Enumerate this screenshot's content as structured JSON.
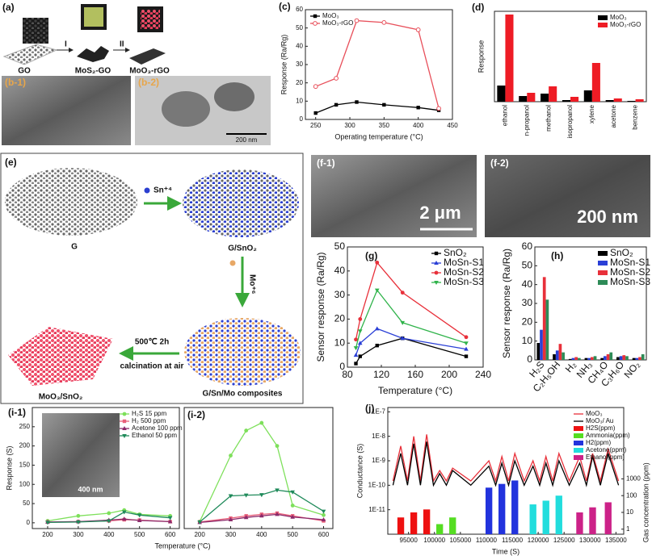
{
  "chart_data": [
    {
      "type": "line",
      "label": "(c)",
      "xlabel": "Operating temperature (°C)",
      "ylabel": "Response (Ra/Rg)",
      "x": [
        250,
        280,
        310,
        350,
        400,
        430
      ],
      "xlim": [
        235,
        450
      ],
      "xticks": [
        250,
        300,
        350,
        400,
        450
      ],
      "ylim": [
        0,
        60
      ],
      "yticks": [
        0,
        10,
        20,
        30,
        40,
        50,
        60
      ],
      "legend": "upper left",
      "series": [
        {
          "name": "MoO₃",
          "color": "#000000",
          "marker": "square",
          "values": [
            3.5,
            8,
            9.5,
            8,
            6.5,
            5
          ]
        },
        {
          "name": "MoO₃-rGO",
          "color": "#e8505b",
          "marker": "open-circle",
          "values": [
            18,
            22.5,
            54,
            53,
            49,
            6
          ]
        }
      ]
    },
    {
      "type": "bar",
      "label": "(d)",
      "ylabel": "Response",
      "categories": [
        "ethanol",
        "n-propanol",
        "methanol",
        "isopropanol",
        "xylene",
        "acetone",
        "benzene"
      ],
      "ylim": [
        0,
        56
      ],
      "legend": "upper right",
      "series": [
        {
          "name": "MoO₃",
          "color": "#000000",
          "values": [
            10,
            3.5,
            5,
            1,
            7,
            1,
            0.5
          ]
        },
        {
          "name": "MoO₃-rGO",
          "color": "#ee1c25",
          "values": [
            54,
            5.5,
            9.5,
            3,
            24,
            2,
            1.5
          ]
        }
      ]
    },
    {
      "type": "line",
      "label": "(g)",
      "xlabel": "Temperature (°C)",
      "ylabel": "Sensor response (Ra/Rg)",
      "x": [
        90,
        95,
        115,
        145,
        220
      ],
      "xlim": [
        80,
        240
      ],
      "xticks": [
        80,
        120,
        160,
        200,
        240
      ],
      "ylim": [
        0,
        50
      ],
      "yticks": [
        0,
        10,
        20,
        30,
        40,
        50
      ],
      "legend": "upper right",
      "series": [
        {
          "name": "SnO₂",
          "color": "#000000",
          "marker": "square",
          "values": [
            1.5,
            4.5,
            9,
            12,
            4.5
          ]
        },
        {
          "name": "MoSn-S1",
          "color": "#2a3fd6",
          "marker": "triangle",
          "values": [
            5,
            10,
            16,
            12,
            7.5
          ]
        },
        {
          "name": "MoSn-S2",
          "color": "#e8303a",
          "marker": "circle",
          "values": [
            11.5,
            20,
            43.5,
            31,
            12.5
          ]
        },
        {
          "name": "MoSn-S3",
          "color": "#2fb34a",
          "marker": "triangle-down",
          "values": [
            8,
            15,
            32,
            18.5,
            10
          ]
        }
      ]
    },
    {
      "type": "bar",
      "label": "(h)",
      "ylabel": "Sensor response (Ra/Rg)",
      "categories": [
        "H₂S",
        "C₂H₅OH",
        "H₂",
        "NH₃",
        "CH₄O",
        "C₃H₆O",
        "NO₂"
      ],
      "ylim": [
        0,
        60
      ],
      "yticks": [
        0,
        10,
        20,
        30,
        40,
        50,
        60
      ],
      "legend": "upper right",
      "series": [
        {
          "name": "SnO₂",
          "color": "#000000",
          "values": [
            9,
            3,
            0.5,
            1,
            1,
            1.5,
            1
          ]
        },
        {
          "name": "MoSn-S1",
          "color": "#2a3fd6",
          "values": [
            16,
            5,
            1,
            1,
            2,
            2,
            1
          ]
        },
        {
          "name": "MoSn-S2",
          "color": "#e8303a",
          "values": [
            44,
            8.5,
            1.5,
            1.5,
            3,
            2.5,
            1.5
          ]
        },
        {
          "name": "MoSn-S3",
          "color": "#2e8b57",
          "values": [
            32,
            4,
            1,
            2,
            4,
            2,
            3
          ]
        }
      ]
    },
    {
      "type": "line",
      "label": "(i-1)",
      "xlabel": "Temperature (°C)",
      "ylabel": "Response (S)",
      "x": [
        200,
        300,
        400,
        450,
        500,
        600
      ],
      "xlim": [
        150,
        630
      ],
      "xticks": [
        200,
        300,
        400,
        500,
        600
      ],
      "ylim": [
        -15,
        300
      ],
      "yticks": [
        0,
        50,
        100,
        150,
        200,
        250
      ],
      "legend": "upper right",
      "series": [
        {
          "name": "H₂S 15 ppm",
          "color": "#7ee05b",
          "marker": "circle",
          "values": [
            5,
            18,
            25,
            33,
            22,
            18
          ]
        },
        {
          "name": "H₂ 500 ppm",
          "color": "#e8607a",
          "marker": "square",
          "values": [
            2,
            3,
            5,
            8,
            7,
            3
          ]
        },
        {
          "name": "Acetone 100 ppm",
          "color": "#8b2a6a",
          "marker": "triangle",
          "values": [
            2,
            3,
            7,
            10,
            6,
            3
          ]
        },
        {
          "name": "Ethanol 50 ppm",
          "color": "#1f8a5a",
          "marker": "triangle-down",
          "values": [
            1,
            2,
            5,
            28,
            20,
            13
          ]
        }
      ]
    },
    {
      "type": "line",
      "label": "(i-2)",
      "x": [
        200,
        300,
        350,
        400,
        450,
        500,
        600
      ],
      "xlim": [
        150,
        630
      ],
      "xticks": [
        200,
        300,
        400,
        500,
        600
      ],
      "ylim": [
        -15,
        300
      ],
      "series": [
        {
          "color": "#7ee05b",
          "marker": "circle",
          "values": [
            3,
            175,
            240,
            260,
            200,
            45,
            20
          ]
        },
        {
          "color": "#e8607a",
          "marker": "square",
          "values": [
            2,
            12,
            18,
            22,
            25,
            18,
            5
          ]
        },
        {
          "color": "#8b2a6a",
          "marker": "triangle",
          "values": [
            1,
            8,
            14,
            18,
            22,
            15,
            8
          ]
        },
        {
          "color": "#1f8a5a",
          "marker": "triangle-down",
          "values": [
            2,
            70,
            72,
            73,
            85,
            80,
            30
          ]
        }
      ]
    },
    {
      "type": "line",
      "label": "(j)",
      "xlabel": "Time (S)",
      "ylabel": "Conductance (S)",
      "y2label": "Gas concentration (ppm)",
      "xlim": [
        91000,
        136500
      ],
      "xticks": [
        95000,
        100000,
        105000,
        110000,
        115000,
        120000,
        125000,
        130000,
        135000
      ],
      "ylog": true,
      "ylim": [
        1e-12,
        1.5e-07
      ],
      "yticks": [
        {
          "value": 1e-07,
          "label": "1E-7"
        },
        {
          "value": 1e-08,
          "label": "1E-8"
        },
        {
          "value": 1e-09,
          "label": "1E-9"
        },
        {
          "value": 1e-10,
          "label": "1E-10"
        },
        {
          "value": 1e-11,
          "label": "1E-11"
        }
      ],
      "y2log": true,
      "y2lim": [
        0.5,
        3000
      ],
      "y2ticks": [
        1,
        10,
        100,
        1000
      ],
      "legend": "upper right",
      "series": [
        {
          "name": "MoO₃",
          "color": "#e8303a",
          "x": [
            92000,
            93500,
            94800,
            96000,
            97300,
            98500,
            99800,
            101000,
            102300,
            103500,
            107000,
            110500,
            111800,
            113000,
            114300,
            115500,
            117300,
            119000,
            120300,
            121500,
            122800,
            124000,
            126000,
            128000,
            129300,
            130500,
            132000,
            133500,
            135500
          ],
          "values": [
            1.5e-10,
            4e-09,
            1.5e-10,
            1e-08,
            1.5e-10,
            1.2e-08,
            1.5e-10,
            4e-10,
            1.5e-10,
            5e-10,
            1.5e-10,
            1e-09,
            1.5e-10,
            1.5e-09,
            1.5e-10,
            2e-09,
            1.5e-10,
            1e-09,
            1.5e-10,
            1.5e-09,
            1.5e-10,
            2e-09,
            1.5e-10,
            1.5e-09,
            1.5e-10,
            2e-09,
            1.5e-10,
            3e-09,
            1.5e-10
          ]
        },
        {
          "name": "MoO₃/ Au",
          "color": "#000000",
          "x": [
            92000,
            93500,
            94800,
            96000,
            97300,
            98500,
            99800,
            101000,
            102300,
            103500,
            107000,
            110500,
            111800,
            113000,
            114300,
            115500,
            117300,
            119000,
            120300,
            121500,
            122800,
            124000,
            126000,
            128000,
            129300,
            130500,
            132000,
            133500,
            135500
          ],
          "values": [
            1e-10,
            2e-09,
            1e-10,
            5e-09,
            1e-10,
            6e-09,
            1e-10,
            3e-10,
            1e-10,
            4e-10,
            1e-10,
            6e-10,
            1e-10,
            8e-10,
            1e-10,
            1e-09,
            1e-10,
            6e-10,
            1e-10,
            8e-10,
            1e-10,
            1e-09,
            1e-10,
            8e-10,
            1e-10,
            1.5e-09,
            1e-10,
            2e-09,
            1e-10
          ]
        },
        {
          "name": "H2S(ppm)",
          "type": "bar",
          "axis": "y2",
          "color": "#ee1111",
          "x": [
            93500,
            96000,
            98500
          ],
          "values": [
            5,
            10,
            15
          ]
        },
        {
          "name": "Ammonia(ppm)",
          "type": "bar",
          "axis": "y2",
          "color": "#55dd22",
          "x": [
            101000,
            103500
          ],
          "values": [
            2,
            5
          ]
        },
        {
          "name": "H2(ppm)",
          "type": "bar",
          "axis": "y2",
          "color": "#2233dd",
          "x": [
            110500,
            113000,
            115500
          ],
          "values": [
            300,
            500,
            800
          ]
        },
        {
          "name": "Acetone(ppm)",
          "type": "bar",
          "axis": "y2",
          "color": "#22dddd",
          "x": [
            119000,
            121500,
            124000
          ],
          "values": [
            30,
            50,
            100
          ]
        },
        {
          "name": "Ethanol(ppm)",
          "type": "bar",
          "axis": "y2",
          "color": "#cc2288",
          "x": [
            128000,
            130500,
            133500
          ],
          "values": [
            10,
            20,
            40
          ]
        }
      ]
    }
  ],
  "diagram_a": {
    "label": "(a)",
    "step1": "I",
    "step2": "II",
    "go": "GO",
    "mos2": "MoS₂-GO",
    "moo3": "MoO₃-rGO"
  },
  "diagram_e": {
    "label": "(e)",
    "g": "G",
    "sn": "Sn⁺⁴",
    "g_sno2": "G/SnO₂",
    "mo": "Mo⁺⁶",
    "composite": "G/Sn/Mo composites",
    "heat": "500℃ 2h",
    "calc": "calcination at air",
    "product": "MoO₃/SnO₂"
  },
  "photos": {
    "b1": {
      "label": "(b-1)"
    },
    "b2": {
      "label": "(b-2)",
      "scale": "200 nm"
    },
    "f1": {
      "label": "(f-1)",
      "scale": "2 μm"
    },
    "f2": {
      "label": "(f-2)",
      "scale": "200 nm"
    },
    "i1_inset": {
      "scale": "400 nm"
    }
  }
}
